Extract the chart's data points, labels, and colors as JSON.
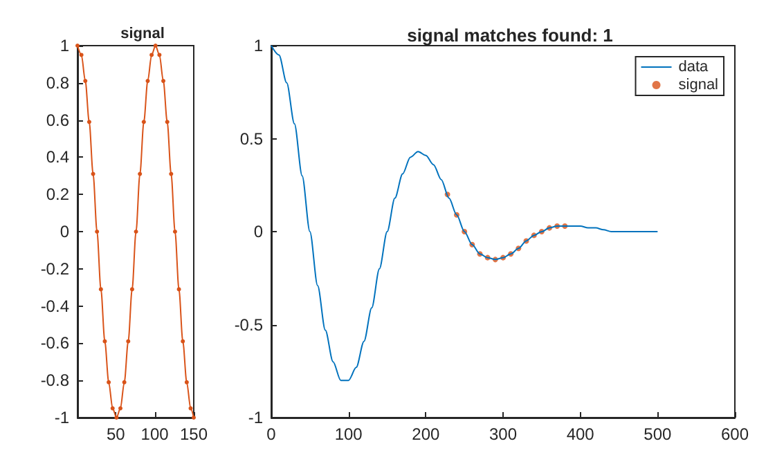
{
  "chart_data": [
    {
      "type": "line",
      "title": "signal",
      "color": "#d95319",
      "marker": "circle",
      "legend": false,
      "grid": false,
      "x": [
        1,
        6,
        11,
        16,
        21,
        26,
        31,
        36,
        41,
        46,
        51,
        56,
        61,
        66,
        71,
        76,
        81,
        86,
        91,
        96,
        101,
        106,
        111,
        116,
        121,
        126,
        131,
        136,
        141,
        146,
        150
      ],
      "values": [
        1,
        0.95,
        0.81,
        0.59,
        0.31,
        0,
        -0.31,
        -0.59,
        -0.81,
        -0.95,
        -1,
        -0.95,
        -0.81,
        -0.59,
        -0.31,
        0,
        0.31,
        0.59,
        0.81,
        0.95,
        1,
        0.95,
        0.81,
        0.59,
        0.31,
        0,
        -0.31,
        -0.59,
        -0.81,
        -0.95,
        -1
      ],
      "xlim": [
        1,
        150
      ],
      "xticks": [
        50,
        100,
        150
      ],
      "ylim": [
        -1,
        1
      ],
      "yticks": [
        -1,
        -0.8,
        -0.6,
        -0.4,
        -0.2,
        0,
        0.2,
        0.4,
        0.6,
        0.8,
        1
      ]
    },
    {
      "type": "line",
      "title": "signal matches found: 1",
      "legend": "top right",
      "grid": false,
      "series": [
        {
          "name": "data",
          "type": "line",
          "marker": "none",
          "color": "#0072bd",
          "x": [
            0,
            10,
            20,
            30,
            40,
            50,
            60,
            70,
            80,
            90,
            100,
            110,
            120,
            130,
            140,
            150,
            160,
            170,
            180,
            190,
            200,
            210,
            220,
            230,
            240,
            250,
            260,
            270,
            280,
            290,
            300,
            310,
            320,
            330,
            340,
            350,
            360,
            370,
            380,
            390,
            400,
            410,
            420,
            430,
            440,
            450,
            460,
            470,
            480,
            490,
            500
          ],
          "values": [
            1,
            0.95,
            0.8,
            0.58,
            0.3,
            0,
            -0.29,
            -0.53,
            -0.7,
            -0.8,
            -0.8,
            -0.73,
            -0.59,
            -0.41,
            -0.2,
            0,
            0.18,
            0.31,
            0.4,
            0.43,
            0.41,
            0.36,
            0.28,
            0.18,
            0.09,
            0,
            -0.07,
            -0.12,
            -0.14,
            -0.15,
            -0.14,
            -0.12,
            -0.09,
            -0.05,
            -0.02,
            0,
            0.02,
            0.03,
            0.03,
            0.03,
            0.03,
            0.02,
            0.02,
            0.01,
            0,
            0,
            0,
            0,
            0,
            0,
            0
          ]
        },
        {
          "name": "signal",
          "type": "scatter",
          "marker": "circle",
          "color": "#d95319",
          "x": [
            228,
            240,
            250,
            260,
            270,
            280,
            290,
            300,
            310,
            320,
            330,
            340,
            350,
            360,
            370,
            380
          ],
          "values": [
            0.2,
            0.09,
            0,
            -0.07,
            -0.12,
            -0.14,
            -0.15,
            -0.14,
            -0.12,
            -0.09,
            -0.05,
            -0.02,
            0,
            0.02,
            0.03,
            0.03
          ]
        }
      ],
      "xlim": [
        0,
        600
      ],
      "xticks": [
        0,
        100,
        200,
        300,
        400,
        500,
        600
      ],
      "ylim": [
        -1,
        1
      ],
      "yticks": [
        -1,
        -0.5,
        0,
        0.5,
        1
      ]
    }
  ]
}
